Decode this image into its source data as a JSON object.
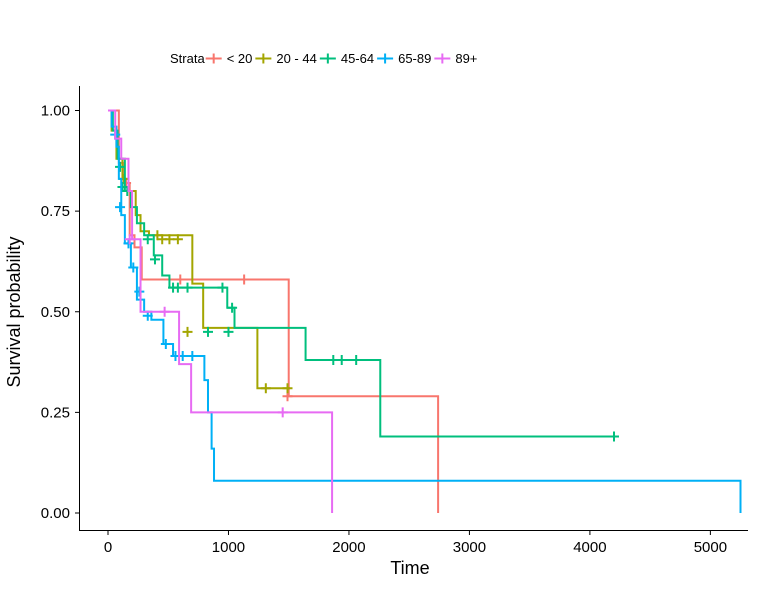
{
  "legend": {
    "title": "Strata",
    "items": [
      {
        "label": "< 20",
        "color": "#F8766D"
      },
      {
        "label": "20 - 44",
        "color": "#A3A500"
      },
      {
        "label": "45-64",
        "color": "#00BF7D"
      },
      {
        "label": "65-89",
        "color": "#00B0F6"
      },
      {
        "label": "89+",
        "color": "#E76BF3"
      }
    ]
  },
  "chart_data": {
    "type": "line",
    "xlabel": "Time",
    "ylabel": "Survival probability",
    "xlim": [
      0,
      5250
    ],
    "ylim": [
      0,
      1
    ],
    "x_ticks": [
      0,
      1000,
      2000,
      3000,
      4000,
      5000
    ],
    "y_ticks": [
      "0.00",
      "0.25",
      "0.50",
      "0.75",
      "1.00"
    ],
    "y_tick_values": [
      0,
      0.25,
      0.5,
      0.75,
      1.0
    ],
    "legend_position": "top",
    "grid": false,
    "series": [
      {
        "name": "< 20",
        "color": "#F8766D",
        "steps": [
          [
            0,
            1.0
          ],
          [
            90,
            0.87
          ],
          [
            130,
            0.82
          ],
          [
            180,
            0.69
          ],
          [
            220,
            0.66
          ],
          [
            280,
            0.58
          ],
          [
            1500,
            0.29
          ],
          [
            2740,
            0.0
          ]
        ],
        "censor": [
          [
            150,
            0.82
          ],
          [
            600,
            0.58
          ],
          [
            1130,
            0.58
          ],
          [
            1490,
            0.29
          ]
        ]
      },
      {
        "name": "20 - 44",
        "color": "#A3A500",
        "steps": [
          [
            0,
            1.0
          ],
          [
            30,
            0.95
          ],
          [
            70,
            0.88
          ],
          [
            120,
            0.83
          ],
          [
            170,
            0.8
          ],
          [
            230,
            0.74
          ],
          [
            270,
            0.7
          ],
          [
            340,
            0.69
          ],
          [
            700,
            0.57
          ],
          [
            790,
            0.46
          ],
          [
            1240,
            0.31
          ],
          [
            1510,
            0.31
          ]
        ],
        "censor": [
          [
            130,
            0.83
          ],
          [
            410,
            0.69
          ],
          [
            450,
            0.68
          ],
          [
            510,
            0.68
          ],
          [
            580,
            0.68
          ],
          [
            660,
            0.45
          ],
          [
            1310,
            0.31
          ],
          [
            1490,
            0.31
          ]
        ]
      },
      {
        "name": "45-64",
        "color": "#00BF7D",
        "steps": [
          [
            0,
            1.0
          ],
          [
            40,
            0.95
          ],
          [
            80,
            0.88
          ],
          [
            140,
            0.8
          ],
          [
            190,
            0.76
          ],
          [
            240,
            0.72
          ],
          [
            300,
            0.69
          ],
          [
            380,
            0.64
          ],
          [
            450,
            0.59
          ],
          [
            510,
            0.56
          ],
          [
            900,
            0.56
          ],
          [
            990,
            0.51
          ],
          [
            1050,
            0.46
          ],
          [
            1640,
            0.38
          ],
          [
            2260,
            0.19
          ],
          [
            4200,
            0.19
          ]
        ],
        "censor": [
          [
            100,
            0.86
          ],
          [
            120,
            0.81
          ],
          [
            160,
            0.8
          ],
          [
            330,
            0.68
          ],
          [
            390,
            0.63
          ],
          [
            540,
            0.56
          ],
          [
            580,
            0.56
          ],
          [
            660,
            0.56
          ],
          [
            830,
            0.45
          ],
          [
            950,
            0.56
          ],
          [
            1000,
            0.45
          ],
          [
            1030,
            0.51
          ],
          [
            1870,
            0.38
          ],
          [
            1940,
            0.38
          ],
          [
            2060,
            0.38
          ],
          [
            4200,
            0.19
          ]
        ]
      },
      {
        "name": "65-89",
        "color": "#00B0F6",
        "steps": [
          [
            0,
            1.0
          ],
          [
            30,
            0.96
          ],
          [
            70,
            0.91
          ],
          [
            90,
            0.83
          ],
          [
            110,
            0.74
          ],
          [
            140,
            0.67
          ],
          [
            190,
            0.61
          ],
          [
            240,
            0.53
          ],
          [
            300,
            0.5
          ],
          [
            360,
            0.48
          ],
          [
            460,
            0.42
          ],
          [
            540,
            0.39
          ],
          [
            800,
            0.33
          ],
          [
            830,
            0.25
          ],
          [
            860,
            0.16
          ],
          [
            880,
            0.08
          ],
          [
            5250,
            0.0
          ]
        ],
        "censor": [
          [
            60,
            0.94
          ],
          [
            100,
            0.76
          ],
          [
            170,
            0.67
          ],
          [
            210,
            0.61
          ],
          [
            260,
            0.55
          ],
          [
            330,
            0.49
          ],
          [
            480,
            0.42
          ],
          [
            560,
            0.39
          ],
          [
            620,
            0.39
          ],
          [
            700,
            0.39
          ]
        ]
      },
      {
        "name": "89+",
        "color": "#E76BF3",
        "steps": [
          [
            0,
            1.0
          ],
          [
            60,
            0.93
          ],
          [
            110,
            0.88
          ],
          [
            170,
            0.8
          ],
          [
            200,
            0.68
          ],
          [
            270,
            0.5
          ],
          [
            590,
            0.37
          ],
          [
            690,
            0.25
          ],
          [
            1860,
            0.0
          ]
        ],
        "censor": [
          [
            180,
            0.68
          ],
          [
            470,
            0.5
          ],
          [
            1450,
            0.25
          ]
        ]
      }
    ]
  }
}
